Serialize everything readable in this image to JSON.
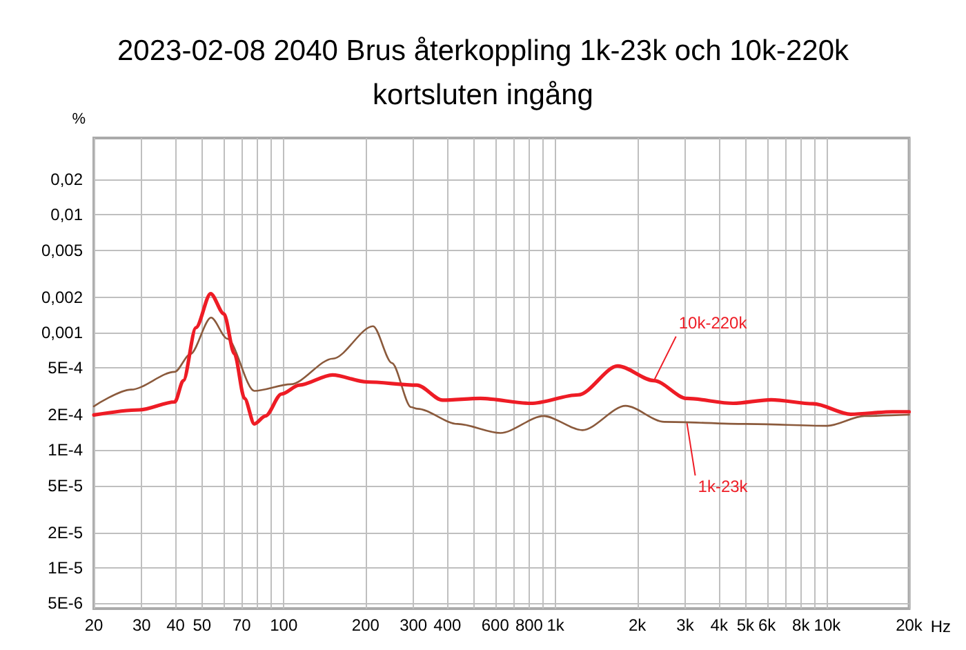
{
  "chart_data": {
    "type": "line",
    "title": "2023-02-08 2040 Brus återkoppling 1k-23k och 10k-220k\nkortsluten ingång",
    "ylabel": "%",
    "xlabel": "Hz",
    "log": "xy",
    "grid": true,
    "marker": "none",
    "line_style": "solid",
    "xlim": [
      20,
      20000
    ],
    "ylim": [
      4.5e-06,
      0.045
    ],
    "xticks": [
      20,
      30,
      40,
      50,
      {
        "value": 60,
        "label": null
      },
      70,
      {
        "value": 80,
        "label": null
      },
      {
        "value": 90,
        "label": null
      },
      100,
      200,
      300,
      400,
      {
        "value": 500,
        "label": null
      },
      600,
      {
        "value": 700,
        "label": null
      },
      800,
      {
        "value": 900,
        "label": null
      },
      {
        "value": 1000,
        "label": "1k"
      },
      {
        "value": 2000,
        "label": "2k"
      },
      {
        "value": 3000,
        "label": "3k"
      },
      {
        "value": 4000,
        "label": "4k"
      },
      {
        "value": 5000,
        "label": "5k"
      },
      {
        "value": 6000,
        "label": "6k"
      },
      {
        "value": 7000,
        "label": null
      },
      {
        "value": 8000,
        "label": "8k"
      },
      {
        "value": 9000,
        "label": null
      },
      {
        "value": 10000,
        "label": "10k"
      },
      {
        "value": 20000,
        "label": "20k"
      }
    ],
    "yticks": [
      {
        "value": 5e-06,
        "label": "5E-6"
      },
      {
        "value": 1e-05,
        "label": "1E-5"
      },
      {
        "value": 2e-05,
        "label": "2E-5"
      },
      {
        "value": 5e-05,
        "label": "5E-5"
      },
      {
        "value": 0.0001,
        "label": "1E-4"
      },
      {
        "value": 0.0002,
        "label": "2E-4"
      },
      {
        "value": 0.0005,
        "label": "5E-4"
      },
      {
        "value": 0.001,
        "label": "0,001"
      },
      {
        "value": 0.002,
        "label": "0,002"
      },
      {
        "value": 0.005,
        "label": "0,005"
      },
      {
        "value": 0.01,
        "label": "0,01"
      },
      {
        "value": 0.02,
        "label": "0,02"
      }
    ],
    "series": [
      {
        "color": "#8b5a3c",
        "x": [
          20,
          27.4,
          39.7,
          45.3,
          54,
          62,
          77.9,
          106,
          151.6,
          213,
          250,
          294,
          310,
          436,
          627,
          904,
          1256,
          1810,
          2514,
          5000,
          10000,
          13700,
          20000
        ],
        "values": [
          0.000236,
          0.000327,
          0.000463,
          0.000655,
          0.00134,
          0.000885,
          0.000319,
          0.000363,
          0.0006,
          0.00113,
          0.00055,
          0.000232,
          0.000225,
          0.000167,
          0.00014,
          0.000195,
          0.000148,
          0.000238,
          0.000174,
          0.000167,
          0.000161,
          0.000195,
          0.0002
        ]
      },
      {
        "color": "#ee1c25",
        "x": [
          20,
          29.4,
          39.7,
          42.7,
          47.5,
          53.8,
          60.2,
          65.8,
          71.7,
          77.9,
          85.6,
          98.1,
          114,
          151,
          202,
          309,
          384,
          530,
          811,
          1212,
          1694,
          2302,
          3045,
          4506,
          6216,
          8885,
          12200,
          17400,
          20000
        ],
        "values": [
          0.000199,
          0.00022,
          0.000257,
          0.00039,
          0.0011,
          0.00214,
          0.00144,
          0.00066,
          0.000275,
          0.000167,
          0.000195,
          0.0003,
          0.000357,
          0.000436,
          0.00038,
          0.000357,
          0.000266,
          0.000275,
          0.00025,
          0.000295,
          0.000519,
          0.00039,
          0.000275,
          0.00025,
          0.000268,
          0.000248,
          0.000202,
          0.000212,
          0.000212
        ]
      }
    ],
    "annotations": [
      {
        "text": "10k-220k",
        "x": 2302,
        "y": 0.00039
      },
      {
        "text": "1k-23k",
        "x": 3045,
        "y": 0.00017
      }
    ]
  }
}
